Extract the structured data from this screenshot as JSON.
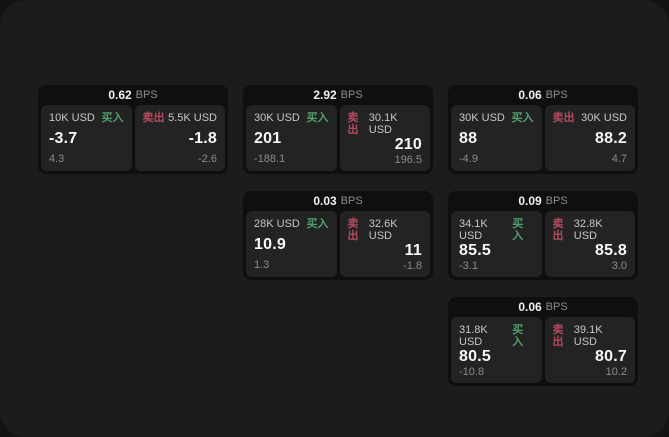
{
  "labels": {
    "bps_unit": "BPS",
    "buy": "买入",
    "sell": "卖出"
  },
  "colors": {
    "backdrop": "#131313",
    "window_bg": "#1c1c1d",
    "card_bg": "#0f0f0f",
    "panel_bg": "#232324",
    "buy_green": "#51a06b",
    "sell_red": "#b44a60"
  },
  "cards": [
    {
      "bps": "0.62",
      "buy": {
        "notional": "10K USD",
        "price": "-3.7",
        "delta": "4.3"
      },
      "sell": {
        "notional": "5.5K USD",
        "price": "-1.8",
        "delta": "-2.6"
      }
    },
    {
      "bps": "2.92",
      "buy": {
        "notional": "30K USD",
        "price": "201",
        "delta": "-188.1"
      },
      "sell": {
        "notional": "30.1K USD",
        "price": "210",
        "delta": "196.5"
      }
    },
    {
      "bps": "0.06",
      "buy": {
        "notional": "30K USD",
        "price": "88",
        "delta": "-4.9"
      },
      "sell": {
        "notional": "30K USD",
        "price": "88.2",
        "delta": "4.7"
      }
    },
    {
      "bps": "0.03",
      "buy": {
        "notional": "28K USD",
        "price": "10.9",
        "delta": "1.3"
      },
      "sell": {
        "notional": "32.6K USD",
        "price": "11",
        "delta": "-1.8"
      }
    },
    {
      "bps": "0.09",
      "buy": {
        "notional": "34.1K USD",
        "price": "85.5",
        "delta": "-3.1"
      },
      "sell": {
        "notional": "32.8K USD",
        "price": "85.8",
        "delta": "3.0"
      }
    },
    {
      "bps": "0.06",
      "buy": {
        "notional": "31.8K USD",
        "price": "80.5",
        "delta": "-10.8"
      },
      "sell": {
        "notional": "39.1K USD",
        "price": "80.7",
        "delta": "10.2"
      }
    }
  ]
}
